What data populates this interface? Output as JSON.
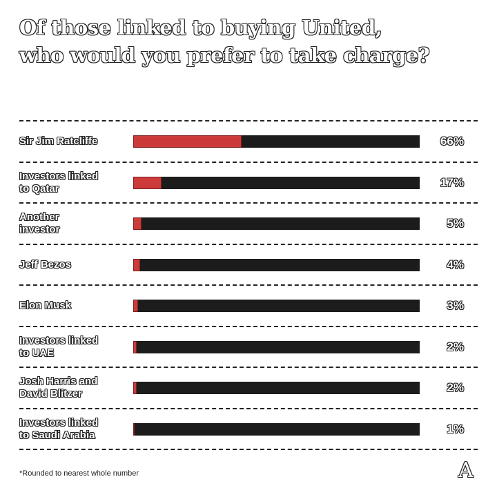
{
  "chart_data": {
    "type": "bar",
    "orientation": "horizontal",
    "title": "Of those linked to buying United, who would you prefer to take charge?",
    "title_lines": [
      "Of those linked to buying United,",
      "who would you prefer to take charge?"
    ],
    "categories": [
      "Sir Jim Ratcliffe",
      "Investors linked to Qatar",
      "Another investor",
      "Jeff Bezos",
      "Elon Musk",
      "Investors linked to UAE",
      "Josh Harris and David Blitzer",
      "Investors linked to Saudi Arabia"
    ],
    "category_lines": [
      [
        "Sir Jim Ratcliffe"
      ],
      [
        "Investors linked",
        "to Qatar"
      ],
      [
        "Another",
        "investor"
      ],
      [
        "Jeff Bezos"
      ],
      [
        "Elon Musk"
      ],
      [
        "Investors linked",
        "to UAE"
      ],
      [
        "Josh Harris and",
        "David Blitzer"
      ],
      [
        "Investors linked",
        "to Saudi Arabia"
      ]
    ],
    "values": [
      66,
      17,
      5,
      4,
      3,
      2,
      2,
      1
    ],
    "value_labels": [
      "66%",
      "17%",
      "5%",
      "4%",
      "3%",
      "2%",
      "2%",
      "1%"
    ],
    "xlim": [
      0,
      115
    ],
    "unit": "%",
    "colors": {
      "fill": "#cc3a3a",
      "track": "#1c1c1c"
    },
    "footnote": "*Rounded to nearest whole number",
    "logo": "A"
  }
}
